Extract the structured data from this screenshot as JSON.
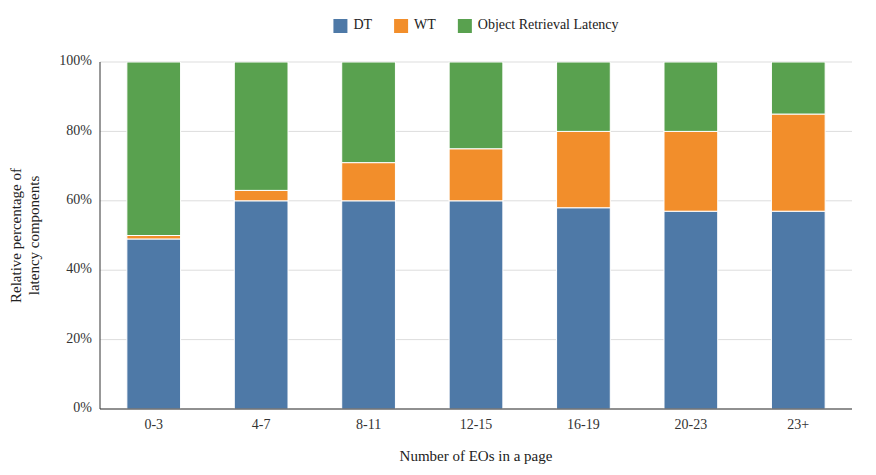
{
  "chart_data": {
    "type": "bar",
    "stacked": true,
    "categories": [
      "0-3",
      "4-7",
      "8-11",
      "12-15",
      "16-19",
      "20-23",
      "23+"
    ],
    "series": [
      {
        "name": "DT",
        "values": [
          49,
          60,
          60,
          60,
          58,
          57,
          57
        ]
      },
      {
        "name": "WT",
        "values": [
          1,
          3,
          11,
          15,
          22,
          23,
          28
        ]
      },
      {
        "name": "Object Retrieval Latency",
        "values": [
          50,
          37,
          29,
          25,
          20,
          20,
          15
        ]
      }
    ],
    "xlabel": "Number of EOs in a page",
    "ylabel": "Relative percentage of\nlatency components",
    "ylim": [
      0,
      100
    ],
    "yticks": [
      {
        "value": 0,
        "label": "0%"
      },
      {
        "value": 20,
        "label": "20%"
      },
      {
        "value": 40,
        "label": "40%"
      },
      {
        "value": 60,
        "label": "60%"
      },
      {
        "value": 80,
        "label": "80%"
      },
      {
        "value": 100,
        "label": "100%"
      }
    ],
    "grid": true,
    "legend": "top"
  }
}
